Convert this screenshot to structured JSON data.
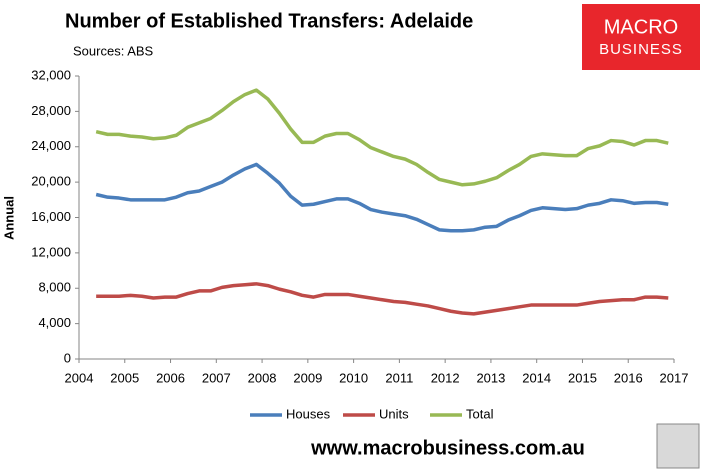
{
  "chart_data": {
    "type": "line",
    "title": "Number of Established Transfers: Adelaide",
    "subtitle": "Sources: ABS",
    "y_label": "Annual",
    "logo": [
      "MACRO",
      "BUSINESS"
    ],
    "footer": "www.macrobusiness.com.au",
    "x": [
      2004.375,
      2004.625,
      2004.875,
      2005.125,
      2005.375,
      2005.625,
      2005.875,
      2006.125,
      2006.375,
      2006.625,
      2006.875,
      2007.125,
      2007.375,
      2007.625,
      2007.875,
      2008.125,
      2008.375,
      2008.625,
      2008.875,
      2009.125,
      2009.375,
      2009.625,
      2009.875,
      2010.125,
      2010.375,
      2010.625,
      2010.875,
      2011.125,
      2011.375,
      2011.625,
      2011.875,
      2012.125,
      2012.375,
      2012.625,
      2012.875,
      2013.125,
      2013.375,
      2013.625,
      2013.875,
      2014.125,
      2014.375,
      2014.625,
      2014.875,
      2015.125,
      2015.375,
      2015.625,
      2015.875,
      2016.125,
      2016.375,
      2016.625,
      2016.875
    ],
    "series": [
      {
        "name": "Houses",
        "color": "#4a7ebb",
        "values": [
          18600,
          18300,
          18200,
          18000,
          18000,
          18000,
          18000,
          18300,
          18800,
          19000,
          19500,
          20000,
          20800,
          21500,
          22000,
          21000,
          19900,
          18400,
          17400,
          17500,
          17800,
          18100,
          18100,
          17600,
          16900,
          16600,
          16400,
          16200,
          15800,
          15200,
          14600,
          14500,
          14500,
          14600,
          14900,
          15000,
          15700,
          16200,
          16800,
          17100,
          17000,
          16900,
          17000,
          17400,
          17600,
          18000,
          17900,
          17600,
          17700,
          17700,
          17500
        ]
      },
      {
        "name": "Units",
        "color": "#be4b48",
        "values": [
          7100,
          7100,
          7100,
          7200,
          7100,
          6900,
          7000,
          7000,
          7400,
          7700,
          7700,
          8100,
          8300,
          8400,
          8500,
          8300,
          7900,
          7600,
          7200,
          7000,
          7300,
          7300,
          7300,
          7100,
          6900,
          6700,
          6500,
          6400,
          6200,
          6000,
          5700,
          5400,
          5200,
          5100,
          5300,
          5500,
          5700,
          5900,
          6100,
          6100,
          6100,
          6100,
          6100,
          6300,
          6500,
          6600,
          6700,
          6700,
          7000,
          7000,
          6900
        ]
      },
      {
        "name": "Total",
        "color": "#98b954",
        "values": [
          25700,
          25400,
          25400,
          25200,
          25100,
          24900,
          25000,
          25300,
          26200,
          26700,
          27200,
          28100,
          29100,
          29900,
          30400,
          29400,
          27800,
          26000,
          24500,
          24500,
          25200,
          25500,
          25500,
          24800,
          23900,
          23400,
          22900,
          22600,
          22000,
          21100,
          20300,
          20000,
          19700,
          19800,
          20100,
          20500,
          21300,
          22000,
          22900,
          23200,
          23100,
          23000,
          23000,
          23800,
          24100,
          24700,
          24600,
          24200,
          24700,
          24700,
          24400
        ]
      }
    ],
    "xlim": [
      2004,
      2017
    ],
    "xticks": [
      2004,
      2005,
      2006,
      2007,
      2008,
      2009,
      2010,
      2011,
      2012,
      2013,
      2014,
      2015,
      2016,
      2017
    ],
    "ylim": [
      0,
      32000
    ],
    "yticks": [
      0,
      {
        "value": 4000,
        "label": "4,000"
      },
      {
        "value": 8000,
        "label": "8,000"
      },
      {
        "value": 12000,
        "label": "12,000"
      },
      {
        "value": 16000,
        "label": "16,000"
      },
      {
        "value": 20000,
        "label": "20,000"
      },
      {
        "value": 24000,
        "label": "24,000"
      },
      {
        "value": 28000,
        "label": "28,000"
      },
      {
        "value": 32000,
        "label": "32,000"
      }
    ],
    "grid": false,
    "legend": "bottom"
  }
}
